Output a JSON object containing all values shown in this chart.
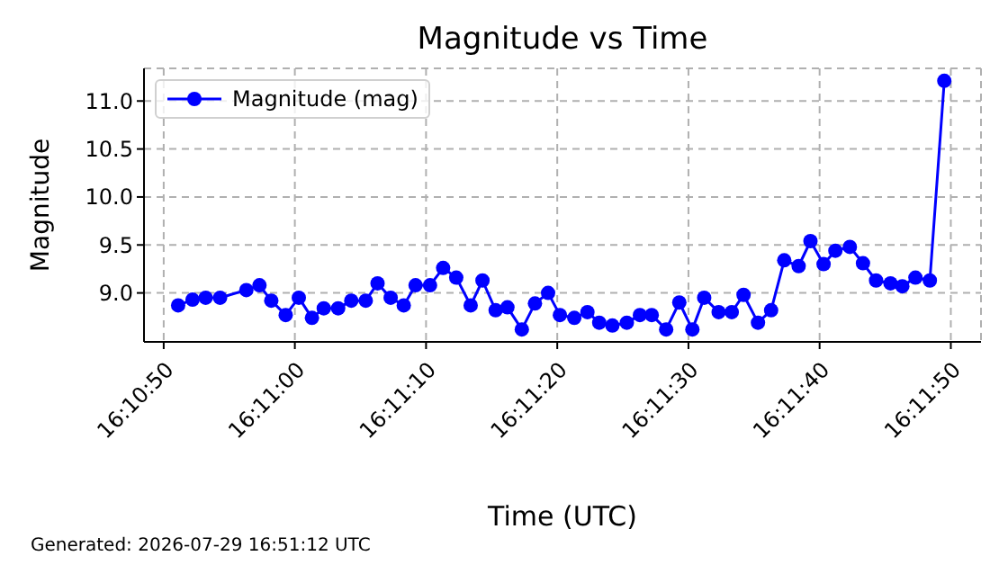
{
  "chart_data": {
    "type": "line",
    "title": "Magnitude vs Time",
    "xlabel": "Time (UTC)",
    "ylabel": "Magnitude",
    "annotations": [
      "Generated: 2026-07-29 16:51:12 UTC"
    ],
    "x": [
      16.180862,
      16.181167,
      16.181445,
      16.18175,
      16.182306,
      16.182584,
      16.182834,
      16.183139,
      16.183417,
      16.183695,
      16.183945,
      16.18425,
      16.184528,
      16.184834,
      16.185084,
      16.185362,
      16.185639,
      16.185889,
      16.186195,
      16.186473,
      16.18675,
      16.187056,
      16.187306,
      16.187584,
      16.187834,
      16.188139,
      16.188417,
      16.188695,
      16.188945,
      16.18925,
      16.189528,
      16.189778,
      16.190056,
      16.190362,
      16.190639,
      16.190889,
      16.191195,
      16.191473,
      16.19175,
      16.192,
      16.192306,
      16.192584,
      16.192834,
      16.193139,
      16.193417,
      16.193695,
      16.194,
      16.19425,
      16.194528,
      16.194778,
      16.195084,
      16.195362,
      16.195639,
      16.195945,
      16.196195,
      16.196473,
      16.196778,
      16.197084
    ],
    "series": [
      {
        "name": "Magnitude (mag)",
        "color": "#0000ff",
        "values": [
          8.87,
          8.93,
          8.95,
          8.95,
          9.03,
          9.08,
          8.92,
          8.77,
          8.95,
          8.74,
          8.84,
          8.84,
          8.92,
          8.92,
          9.1,
          8.95,
          8.87,
          9.08,
          9.08,
          9.26,
          9.16,
          8.87,
          9.13,
          8.82,
          8.85,
          8.62,
          8.89,
          9.0,
          8.77,
          8.74,
          8.8,
          8.69,
          8.66,
          8.69,
          8.77,
          8.77,
          8.62,
          8.9,
          8.62,
          8.95,
          8.8,
          8.8,
          8.98,
          8.69,
          8.82,
          9.34,
          9.28,
          9.54,
          9.3,
          9.44,
          9.48,
          9.31,
          9.13,
          9.1,
          9.07,
          9.16,
          9.13,
          11.21
        ]
      }
    ],
    "xlim": [
      16.180139,
      16.197861
    ],
    "xticks": [
      {
        "value": 16.180556,
        "label": "16:10:50"
      },
      {
        "value": 16.183333,
        "label": "16:11:00"
      },
      {
        "value": 16.186111,
        "label": "16:11:10"
      },
      {
        "value": 16.188889,
        "label": "16:11:20"
      },
      {
        "value": 16.191667,
        "label": "16:11:30"
      },
      {
        "value": 16.194444,
        "label": "16:11:40"
      },
      {
        "value": 16.197222,
        "label": "16:11:50"
      }
    ],
    "ylim": [
      8.49,
      11.34
    ],
    "yticks": [
      {
        "value": 9,
        "label": "9.0"
      },
      {
        "value": 9.5,
        "label": "9.5"
      },
      {
        "value": 10,
        "label": "10.0"
      },
      {
        "value": 10.5,
        "label": "10.5"
      },
      {
        "value": 11,
        "label": "11.0"
      }
    ],
    "grid": true,
    "legend": "top left",
    "marker": "circle",
    "line_style": "solid"
  }
}
